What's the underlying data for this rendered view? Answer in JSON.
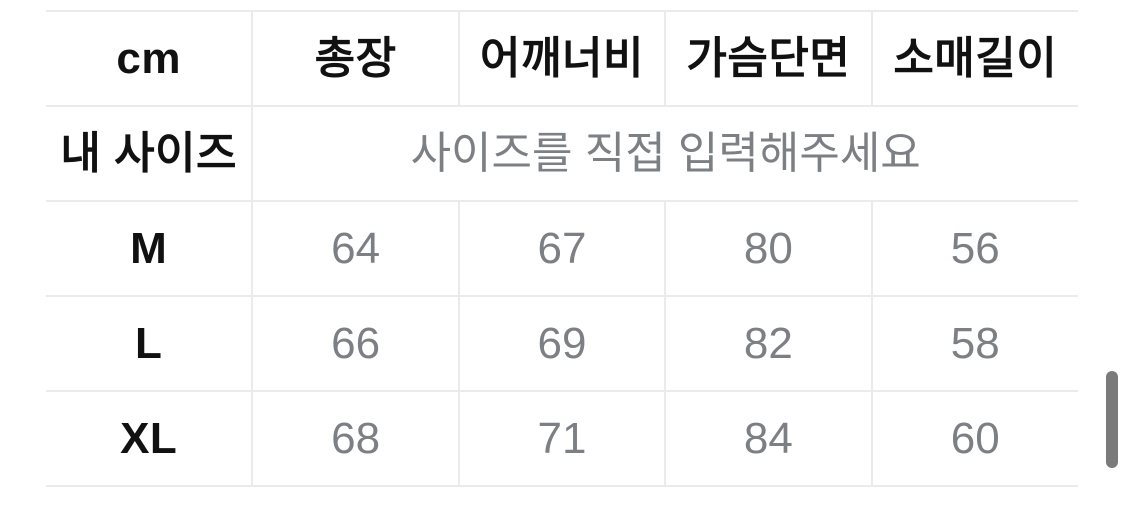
{
  "size_chart": {
    "unit_header": "cm",
    "measurement_columns": [
      "총장",
      "어깨너비",
      "가슴단면",
      "소매길이"
    ],
    "my_size": {
      "label": "내 사이즈",
      "placeholder": "사이즈를 직접 입력해주세요"
    },
    "sizes": [
      {
        "label": "M",
        "values": [
          "64",
          "67",
          "80",
          "56"
        ]
      },
      {
        "label": "L",
        "values": [
          "66",
          "69",
          "82",
          "58"
        ]
      },
      {
        "label": "XL",
        "values": [
          "68",
          "71",
          "84",
          "60"
        ]
      }
    ],
    "colors": {
      "border": "#ebebeb",
      "label_text": "#111111",
      "value_text": "#7c7f83",
      "scrollbar_thumb": "#7a7a7a",
      "background": "#ffffff"
    }
  }
}
